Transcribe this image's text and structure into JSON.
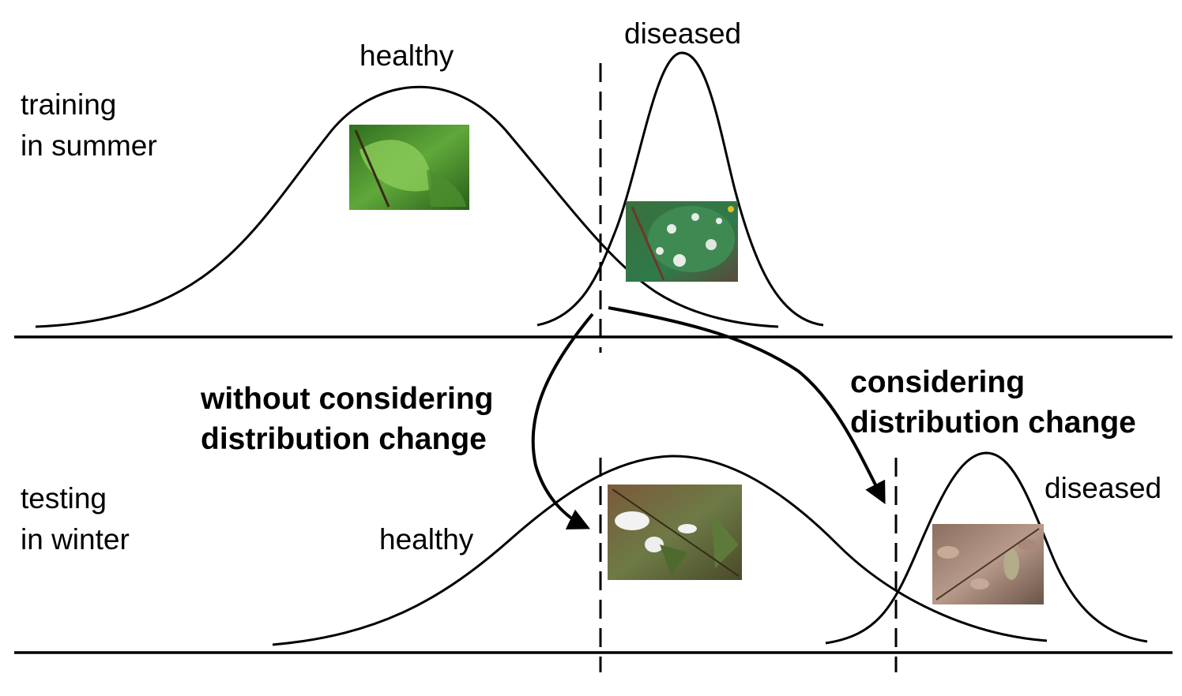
{
  "panels": {
    "training": {
      "label_line1": "training",
      "label_line2": "in summer",
      "healthy_label": "healthy",
      "diseased_label": "diseased",
      "healthy_image": "green healthy leaf with water droplets",
      "diseased_image": "green leaf with white powdery mildew spots"
    },
    "testing": {
      "label_line1": "testing",
      "label_line2": "in winter",
      "healthy_label": "healthy",
      "diseased_label": "diseased",
      "healthy_image": "winter leaves with snow",
      "diseased_image": "dry brown withered leaves"
    }
  },
  "arrows": {
    "without": {
      "line1": "without considering",
      "line2": "distribution change"
    },
    "with": {
      "line1": "considering",
      "line2": "distribution change"
    }
  },
  "colors": {
    "line": "#000000",
    "background": "#ffffff"
  }
}
